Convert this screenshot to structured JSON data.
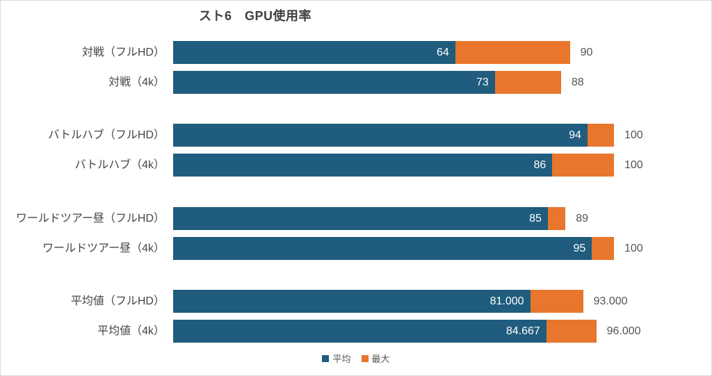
{
  "chart_data": {
    "type": "bar",
    "orientation": "horizontal",
    "stacked": true,
    "title": "スト6　GPU使用率",
    "unit": "%",
    "xlim": [
      0,
      100
    ],
    "grid": false,
    "legend_position": "bottom-center",
    "bar_semantics": "total bar length = 最大 (max); blue segment = 平均 (avg); orange segment = max minus avg",
    "categories": [
      "対戦（フルHD）",
      "対戦（4k）",
      "バトルハブ（フルHD）",
      "バトルハブ（4k）",
      "ワールドツアー昼（フルHD）",
      "ワールドツアー昼（4k）",
      "平均値（フルHD）",
      "平均値（4k）"
    ],
    "series": [
      {
        "name": "平均",
        "color": "#1F5C7D",
        "values": [
          64,
          73,
          94,
          86,
          85,
          95,
          81.0,
          84.667
        ],
        "labels": [
          "64",
          "73",
          "94",
          "86",
          "85",
          "95",
          "81.000",
          "84.667"
        ]
      },
      {
        "name": "最大",
        "color": "#E8762C",
        "values": [
          90,
          88,
          100,
          100,
          89,
          100,
          93.0,
          96.0
        ],
        "labels": [
          "90",
          "88",
          "100",
          "100",
          "89",
          "100",
          "93.000",
          "96.000"
        ]
      }
    ]
  }
}
